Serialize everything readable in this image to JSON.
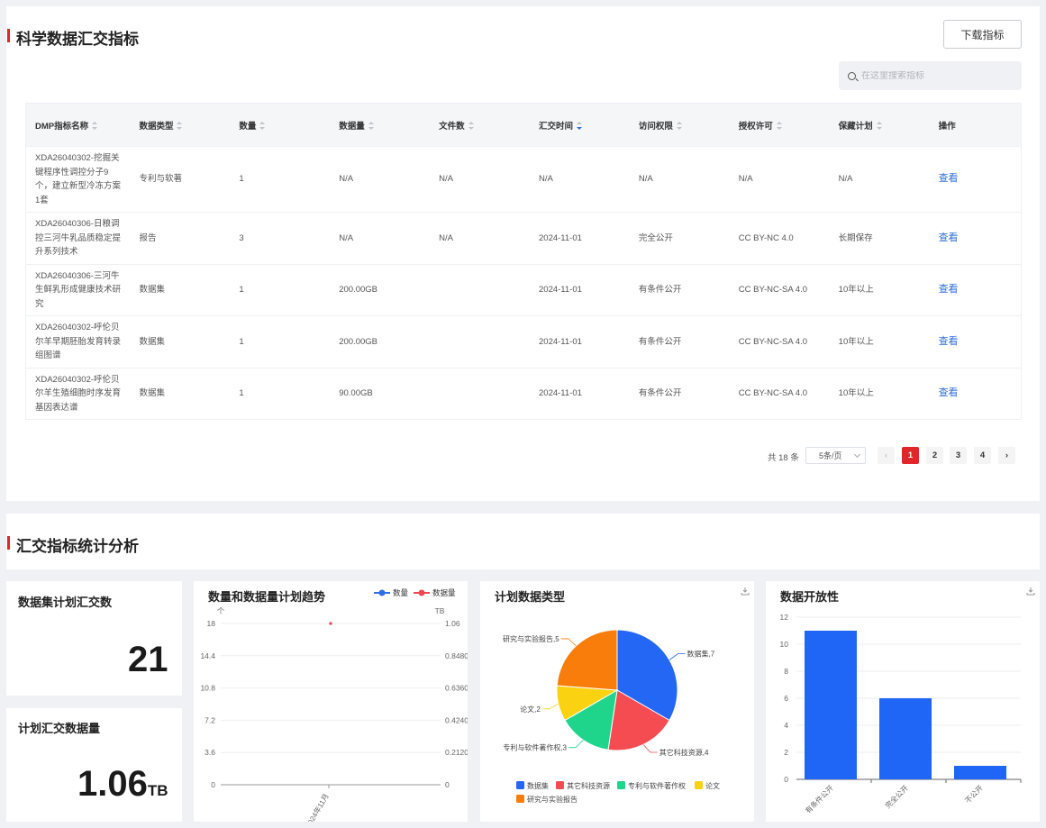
{
  "section1": {
    "title": "科学数据汇交指标",
    "download_button": "下载指标",
    "search_placeholder": "在这里搜索指标"
  },
  "table": {
    "columns": [
      "DMP指标名称",
      "数据类型",
      "数量",
      "数据量",
      "文件数",
      "汇交时间",
      "访问权限",
      "授权许可",
      "保藏计划",
      "操作"
    ],
    "rows": [
      {
        "name": "XDA26040302-挖掘关键程序性调控分子9个，建立新型冷冻方案1套",
        "type": "专利与软著",
        "count": "1",
        "volume": "N/A",
        "files": "N/A",
        "time": "N/A",
        "access": "N/A",
        "license": "N/A",
        "plan": "N/A",
        "op": "查看"
      },
      {
        "name": "XDA26040306-日粮调控三河牛乳品质稳定提升系列技术",
        "type": "报告",
        "count": "3",
        "volume": "N/A",
        "files": "N/A",
        "time": "2024-11-01",
        "access": "完全公开",
        "license": "CC BY-NC 4.0",
        "plan": "长期保存",
        "op": "查看"
      },
      {
        "name": "XDA26040306-三河牛生鲜乳形成健康技术研究",
        "type": "数据集",
        "count": "1",
        "volume": "200.00GB",
        "files": "",
        "time": "2024-11-01",
        "access": "有条件公开",
        "license": "CC BY-NC-SA 4.0",
        "plan": "10年以上",
        "op": "查看"
      },
      {
        "name": "XDA26040302-呼伦贝尔羊早期胚胎发育转录组图谱",
        "type": "数据集",
        "count": "1",
        "volume": "200.00GB",
        "files": "",
        "time": "2024-11-01",
        "access": "有条件公开",
        "license": "CC BY-NC-SA 4.0",
        "plan": "10年以上",
        "op": "查看"
      },
      {
        "name": "XDA26040302-呼伦贝尔羊生殖细胞时序发育基因表达谱",
        "type": "数据集",
        "count": "1",
        "volume": "90.00GB",
        "files": "",
        "time": "2024-11-01",
        "access": "有条件公开",
        "license": "CC BY-NC-SA 4.0",
        "plan": "10年以上",
        "op": "查看"
      }
    ]
  },
  "pagination": {
    "total": "共 18 条",
    "page_size": "5条/页",
    "pages": [
      "1",
      "2",
      "3",
      "4"
    ],
    "current": "1",
    "prev": "‹",
    "next": "›"
  },
  "section2": {
    "title": "汇交指标统计分析"
  },
  "cards": {
    "dataset_count_title": "数据集计划汇交数",
    "dataset_count_value": "21",
    "volume_title": "计划汇交数据量",
    "volume_value": "1.06",
    "volume_unit": "TB"
  },
  "chart_data": [
    {
      "type": "line",
      "title": "数量和数据量计划趋势",
      "x": [
        "2024年11月"
      ],
      "series": [
        {
          "name": "数量",
          "values": [
            18
          ],
          "axis": "left",
          "color": "#2f6fe8"
        },
        {
          "name": "数据量",
          "values": [
            1.06
          ],
          "axis": "right",
          "color": "#f0464f"
        }
      ],
      "ylabel_left": "个",
      "ylabel_right": "TB",
      "yticks_left": [
        "18",
        "14.4",
        "10.8",
        "7.2",
        "3.6",
        "0"
      ],
      "yticks_right": [
        "1.06",
        "0.8480",
        "0.6360",
        "0.4240",
        "0.2120",
        "0"
      ],
      "ylim_left": [
        0,
        18
      ],
      "ylim_right": [
        0,
        1.06
      ],
      "legend": "top-right",
      "grid": true
    },
    {
      "type": "pie",
      "title": "计划数据类型",
      "slices": [
        {
          "name": "数据集",
          "value": 7,
          "color": "#2467f5"
        },
        {
          "name": "其它科技资源",
          "value": 4,
          "color": "#f44c51"
        },
        {
          "name": "专利与软件著作权",
          "value": 3,
          "color": "#1fd58c"
        },
        {
          "name": "论文",
          "value": 2,
          "color": "#fad211"
        },
        {
          "name": "研究与实验报告",
          "value": 5,
          "color": "#f97d0a"
        }
      ],
      "labels": [
        "数据集,7",
        "其它科技资源,4",
        "专利与软件著作权,3",
        "论文,2",
        "研究与实验报告,5"
      ],
      "legend": "bottom"
    },
    {
      "type": "bar",
      "title": "数据开放性",
      "categories": [
        "有条件公开",
        "完全公开",
        "不公开"
      ],
      "values": [
        11,
        6,
        1
      ],
      "ylim": [
        0,
        12
      ],
      "yticks": [
        "0",
        "2",
        "4",
        "6",
        "8",
        "10",
        "12"
      ],
      "color": "#1f66f6",
      "grid": true
    }
  ]
}
